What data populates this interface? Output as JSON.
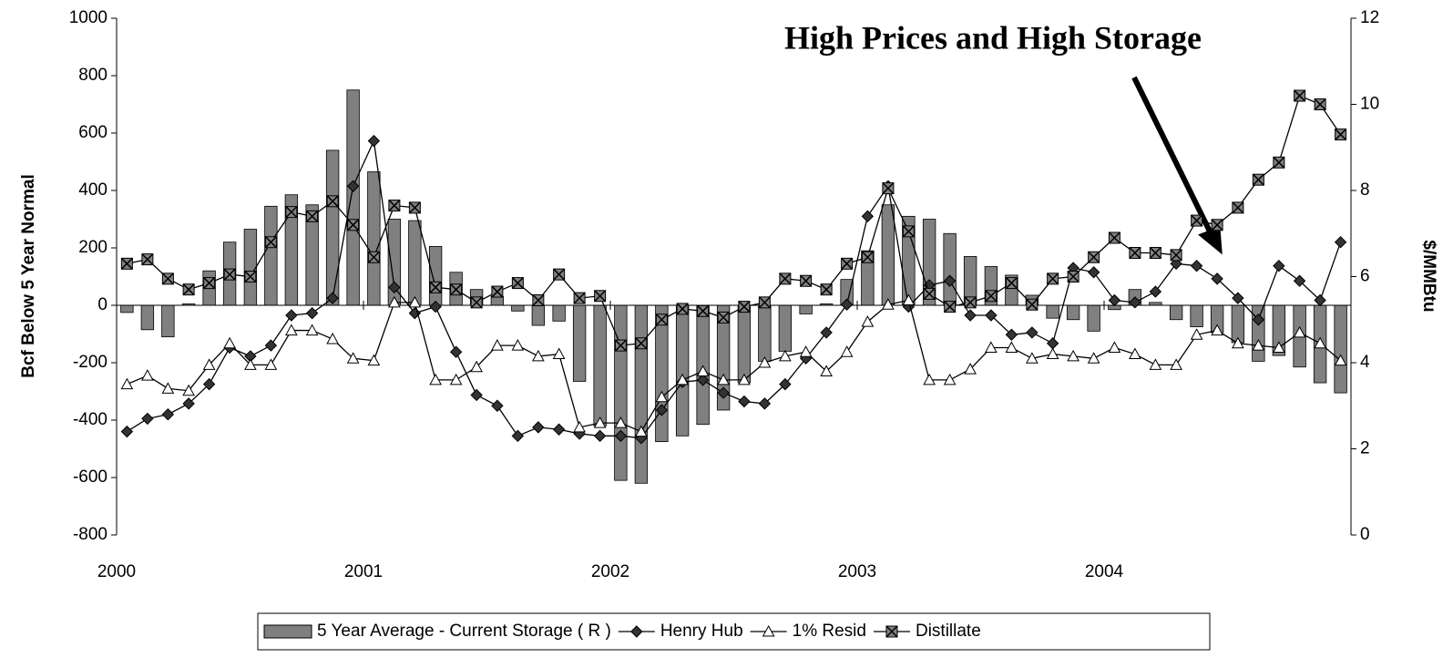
{
  "chart_data": {
    "type": "combo",
    "annotation": "High Prices and High Storage",
    "y_label": "Bcf Below 5 Year Normal",
    "y2_label": "$/MMBtu",
    "xlim": [
      2000,
      2005
    ],
    "xticks": [
      2000,
      2001,
      2002,
      2003,
      2004
    ],
    "ylim": [
      -800,
      1000
    ],
    "yticks": [
      -800,
      -600,
      -400,
      -200,
      0,
      200,
      400,
      600,
      800,
      1000
    ],
    "y2lim": [
      0,
      12
    ],
    "y2ticks": [
      0,
      2,
      4,
      6,
      8,
      10,
      12
    ],
    "legend": "bottom",
    "x": [
      2000.042,
      2000.125,
      2000.208,
      2000.292,
      2000.375,
      2000.458,
      2000.542,
      2000.625,
      2000.708,
      2000.792,
      2000.875,
      2000.958,
      2001.042,
      2001.125,
      2001.208,
      2001.292,
      2001.375,
      2001.458,
      2001.542,
      2001.625,
      2001.708,
      2001.792,
      2001.875,
      2001.958,
      2002.042,
      2002.125,
      2002.208,
      2002.292,
      2002.375,
      2002.458,
      2002.542,
      2002.625,
      2002.708,
      2002.792,
      2002.875,
      2002.958,
      2003.042,
      2003.125,
      2003.208,
      2003.292,
      2003.375,
      2003.458,
      2003.542,
      2003.625,
      2003.708,
      2003.792,
      2003.875,
      2003.958,
      2004.042,
      2004.125,
      2004.208,
      2004.292,
      2004.375,
      2004.458,
      2004.542,
      2004.625,
      2004.708,
      2004.792,
      2004.875,
      2004.958
    ],
    "series": [
      {
        "name": "5 Year Average - Current Storage ( R )",
        "type": "bar",
        "color": "#808080",
        "values": [
          -25,
          -85,
          -110,
          5,
          120,
          220,
          265,
          345,
          385,
          350,
          540,
          750,
          465,
          300,
          295,
          205,
          115,
          55,
          30,
          -20,
          -70,
          -55,
          -265,
          -420,
          -610,
          -620,
          -475,
          -455,
          -415,
          -365,
          -270,
          -195,
          -160,
          -30,
          5,
          90,
          190,
          350,
          310,
          300,
          250,
          170,
          135,
          105,
          35,
          -45,
          -50,
          -90,
          -15,
          55,
          10,
          -50,
          -75,
          -95,
          -130,
          -195,
          -175,
          -215,
          -270,
          -305
        ]
      },
      {
        "name": "Henry Hub",
        "type": "line",
        "marker": "diamond",
        "color": "#000000",
        "axis": "y2",
        "values": [
          2.4,
          2.7,
          2.8,
          3.05,
          3.5,
          4.35,
          4.15,
          4.4,
          5.1,
          5.15,
          5.5,
          8.1,
          9.15,
          5.75,
          5.15,
          5.3,
          4.25,
          3.25,
          3.0,
          2.3,
          2.5,
          2.45,
          2.35,
          2.3,
          2.3,
          2.25,
          2.9,
          3.55,
          3.6,
          3.3,
          3.1,
          3.05,
          3.5,
          4.1,
          4.7,
          5.35,
          7.4,
          8.1,
          5.3,
          5.8,
          5.9,
          5.1,
          5.1,
          4.65,
          4.7,
          4.45,
          6.2,
          6.1,
          5.45,
          5.4,
          5.65,
          6.3,
          6.25,
          5.95,
          5.5,
          5.0,
          6.25,
          5.9,
          5.45,
          6.8
        ]
      },
      {
        "name": "1% Resid",
        "type": "line",
        "marker": "triangle",
        "color": "#000000",
        "axis": "y2",
        "values": [
          3.5,
          3.7,
          3.4,
          3.35,
          3.95,
          4.45,
          3.95,
          3.95,
          4.75,
          4.75,
          4.55,
          4.1,
          4.05,
          5.4,
          5.4,
          3.6,
          3.6,
          3.9,
          4.4,
          4.4,
          4.15,
          4.2,
          2.5,
          2.6,
          2.6,
          2.4,
          3.2,
          3.6,
          3.8,
          3.6,
          3.6,
          4.0,
          4.15,
          4.25,
          3.8,
          4.25,
          4.95,
          5.35,
          5.45,
          3.6,
          3.6,
          3.85,
          4.35,
          4.35,
          4.1,
          4.2,
          4.15,
          4.1,
          4.35,
          4.2,
          3.95,
          3.95,
          4.65,
          4.75,
          4.45,
          4.4,
          4.35,
          4.7,
          4.45,
          4.05
        ]
      },
      {
        "name": "Distillate",
        "type": "line",
        "marker": "xsquare",
        "color": "#000000",
        "axis": "y2",
        "values": [
          6.3,
          6.4,
          5.95,
          5.7,
          5.85,
          6.05,
          6.0,
          6.8,
          7.5,
          7.4,
          7.75,
          7.2,
          6.45,
          7.65,
          7.6,
          5.75,
          5.7,
          5.4,
          5.65,
          5.85,
          5.45,
          6.05,
          5.5,
          5.55,
          4.4,
          4.45,
          5.0,
          5.25,
          5.2,
          5.05,
          5.3,
          5.4,
          5.95,
          5.9,
          5.7,
          6.3,
          6.45,
          8.05,
          7.05,
          5.6,
          5.3,
          5.4,
          5.55,
          5.85,
          5.35,
          5.95,
          6.0,
          6.45,
          6.9,
          6.55,
          6.55,
          6.5,
          7.3,
          7.2,
          7.6,
          8.25,
          8.65,
          10.2,
          10.0,
          9.3
        ]
      }
    ]
  }
}
